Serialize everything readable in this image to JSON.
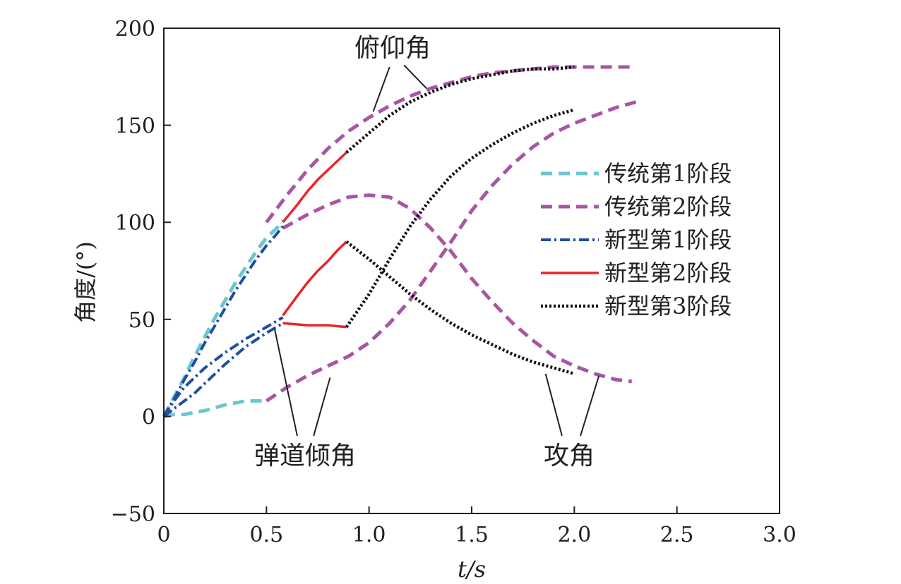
{
  "chart_data": {
    "type": "line",
    "title": "",
    "xlabel": "t/s",
    "ylabel": "角度/(°)",
    "xlim": [
      0,
      3.0
    ],
    "ylim": [
      -50,
      200
    ],
    "xticks": [
      0,
      0.5,
      1.0,
      1.5,
      2.0,
      2.5,
      3.0
    ],
    "xtick_labels": [
      "0",
      "0.5",
      "1.0",
      "1.5",
      "2.0",
      "2.5",
      "3.0"
    ],
    "yticks": [
      -50,
      0,
      50,
      100,
      150,
      200
    ],
    "ytick_labels": [
      "−50",
      "0",
      "50",
      "100",
      "150",
      "200"
    ],
    "grid": false,
    "legend_position": "right",
    "legend": [
      {
        "label": "传统第1阶段",
        "color": "#6cc6d0",
        "dash": "dashed"
      },
      {
        "label": "传统第2阶段",
        "color": "#a756a3",
        "dash": "dashed"
      },
      {
        "label": "新型第1阶段",
        "color": "#1f4e9e",
        "dash": "dashdot"
      },
      {
        "label": "新型第2阶段",
        "color": "#e8262b",
        "dash": "solid"
      },
      {
        "label": "新型第3阶段",
        "color": "#111111",
        "dash": "dotted"
      }
    ],
    "annotations": [
      {
        "text": "俯仰角",
        "leaders": [
          [
            [
              1.02,
              157
            ],
            [
              1.1,
              180
            ]
          ],
          [
            [
              1.28,
              169
            ],
            [
              1.17,
              181
            ]
          ]
        ]
      },
      {
        "text": "弹道倾角",
        "leaders": [
          [
            [
              0.54,
              45
            ],
            [
              0.65,
              -10
            ]
          ],
          [
            [
              0.81,
              20
            ],
            [
              0.73,
              -10
            ]
          ]
        ]
      },
      {
        "text": "攻角",
        "leaders": [
          [
            [
              1.86,
              22
            ],
            [
              1.94,
              -10
            ]
          ],
          [
            [
              2.12,
              21
            ],
            [
              2.03,
              -10
            ]
          ]
        ]
      }
    ],
    "series": [
      {
        "name": "传统第1阶段",
        "curves": [
          {
            "x": [
              0,
              0.05,
              0.1,
              0.15,
              0.2,
              0.25,
              0.3,
              0.35,
              0.4,
              0.45,
              0.5,
              0.55,
              0.58
            ],
            "y": [
              0,
              10,
              20,
              31,
              41,
              51,
              60,
              69,
              77,
              85,
              92,
              97,
              101
            ]
          },
          {
            "x": [
              0,
              0.05,
              0.1,
              0.15,
              0.2,
              0.3,
              0.4,
              0.5
            ],
            "y": [
              0,
              1,
              1,
              2,
              3,
              6,
              8,
              8
            ]
          }
        ]
      },
      {
        "name": "传统第2阶段",
        "curves": [
          {
            "x": [
              0.5,
              0.6,
              0.7,
              0.8,
              0.9,
              1.0,
              1.1,
              1.2,
              1.3,
              1.4,
              1.5,
              1.6,
              1.7,
              1.8,
              1.9,
              2.0,
              2.1,
              2.2,
              2.3
            ],
            "y": [
              100,
              114,
              127,
              138,
              147,
              154,
              160,
              165,
              169,
              172,
              175,
              177,
              178,
              179,
              180,
              180,
              180,
              180,
              180
            ]
          },
          {
            "x": [
              0.58,
              0.7,
              0.8,
              0.9,
              1.0,
              1.1,
              1.2,
              1.3,
              1.4,
              1.5,
              1.6,
              1.7,
              1.8,
              1.9,
              2.0,
              2.1,
              2.2,
              2.28
            ],
            "y": [
              97,
              104,
              109,
              113,
              114,
              113,
              107,
              97,
              85,
              71,
              59,
              48,
              39,
              31,
              26,
              22,
              19,
              18
            ]
          },
          {
            "x": [
              0.5,
              0.6,
              0.7,
              0.8,
              0.9,
              1.0,
              1.1,
              1.2,
              1.3,
              1.4,
              1.5,
              1.6,
              1.7,
              1.8,
              1.9,
              2.0,
              2.1,
              2.2,
              2.3
            ],
            "y": [
              8,
              15,
              21,
              26,
              31,
              38,
              48,
              60,
              75,
              90,
              106,
              119,
              130,
              139,
              146,
              151,
              155,
              159,
              162
            ]
          }
        ]
      },
      {
        "name": "新型第1阶段",
        "curves": [
          {
            "x": [
              0,
              0.05,
              0.1,
              0.15,
              0.2,
              0.25,
              0.3,
              0.35,
              0.4,
              0.45,
              0.5,
              0.55,
              0.58
            ],
            "y": [
              0,
              9,
              19,
              28,
              38,
              47,
              56,
              65,
              73,
              81,
              88,
              94,
              98
            ]
          },
          {
            "x": [
              0,
              0.05,
              0.1,
              0.15,
              0.2,
              0.3,
              0.4,
              0.5,
              0.58
            ],
            "y": [
              0,
              8,
              15,
              20,
              25,
              33,
              40,
              46,
              51
            ]
          },
          {
            "x": [
              0,
              0.05,
              0.1,
              0.15,
              0.2,
              0.3,
              0.4,
              0.5,
              0.58
            ],
            "y": [
              0,
              4,
              8,
              12,
              17,
              27,
              36,
              43,
              48
            ]
          }
        ]
      },
      {
        "name": "新型第2阶段",
        "curves": [
          {
            "x": [
              0.58,
              0.65,
              0.7,
              0.75,
              0.8,
              0.85,
              0.89
            ],
            "y": [
              100,
              109,
              116,
              122,
              127,
              132,
              136
            ]
          },
          {
            "x": [
              0.58,
              0.65,
              0.7,
              0.75,
              0.8,
              0.85,
              0.89
            ],
            "y": [
              52,
              62,
              69,
              75,
              80,
              86,
              90
            ]
          },
          {
            "x": [
              0.58,
              0.7,
              0.8,
              0.89
            ],
            "y": [
              48,
              47,
              47,
              46
            ]
          }
        ]
      },
      {
        "name": "新型第3阶段",
        "curves": [
          {
            "x": [
              0.89,
              1.0,
              1.1,
              1.2,
              1.3,
              1.4,
              1.5,
              1.6,
              1.7,
              1.8,
              1.9,
              2.0
            ],
            "y": [
              136,
              146,
              155,
              162,
              167,
              171,
              174,
              176,
              178,
              179,
              179,
              180
            ]
          },
          {
            "x": [
              0.89,
              1.0,
              1.1,
              1.2,
              1.3,
              1.4,
              1.5,
              1.6,
              1.7,
              1.8,
              1.9,
              2.0
            ],
            "y": [
              90,
              81,
              72,
              63,
              55,
              48,
              42,
              37,
              32,
              28,
              25,
              22
            ]
          },
          {
            "x": [
              0.89,
              1.0,
              1.1,
              1.2,
              1.3,
              1.4,
              1.5,
              1.6,
              1.7,
              1.8,
              1.9,
              2.0
            ],
            "y": [
              46,
              63,
              81,
              98,
              112,
              124,
              133,
              140,
              146,
              151,
              155,
              158
            ]
          }
        ]
      }
    ]
  }
}
